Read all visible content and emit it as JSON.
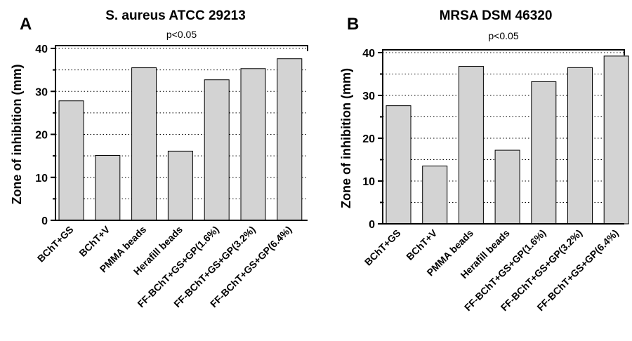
{
  "chart_data": [
    {
      "type": "bar",
      "panel_label": "A",
      "title": "S. aureus ATCC 29213",
      "ylabel": "Zone of inhibition (mm)",
      "xlabel": "",
      "ylim": [
        0,
        40
      ],
      "yticks": [
        "0",
        "10",
        "20",
        "30",
        "40"
      ],
      "grid": "dotted horizontal",
      "significance": "p<0.05",
      "categories": [
        "BChT+GS",
        "BChT+V",
        "PMMA beads",
        "Herafill beads",
        "FF-BChT+GS+GP(1.6%)",
        "FF-BChT+GS+GP(3.2%)",
        "FF-BChT+GS+GP(6.4%)"
      ],
      "values": [
        27.8,
        15.1,
        35.5,
        16.1,
        32.7,
        35.3,
        37.6
      ],
      "bar_color": "#d3d3d3"
    },
    {
      "type": "bar",
      "panel_label": "B",
      "title": "MRSA DSM 46320",
      "ylabel": "Zone of inhibition (mm)",
      "xlabel": "",
      "ylim": [
        0,
        40
      ],
      "yticks": [
        "0",
        "10",
        "20",
        "30",
        "40"
      ],
      "grid": "dotted horizontal",
      "significance": "p<0.05",
      "categories": [
        "BChT+GS",
        "BChT+V",
        "PMMA beads",
        "Herafill beads",
        "FF-BChT+GS+GP(1.6%)",
        "FF-BChT+GS+GP(3.2%)",
        "FF-BChT+GS+GP(6.4%)"
      ],
      "values": [
        27.6,
        13.5,
        36.8,
        17.2,
        33.2,
        36.5,
        39.2
      ],
      "bar_color": "#d3d3d3"
    }
  ]
}
